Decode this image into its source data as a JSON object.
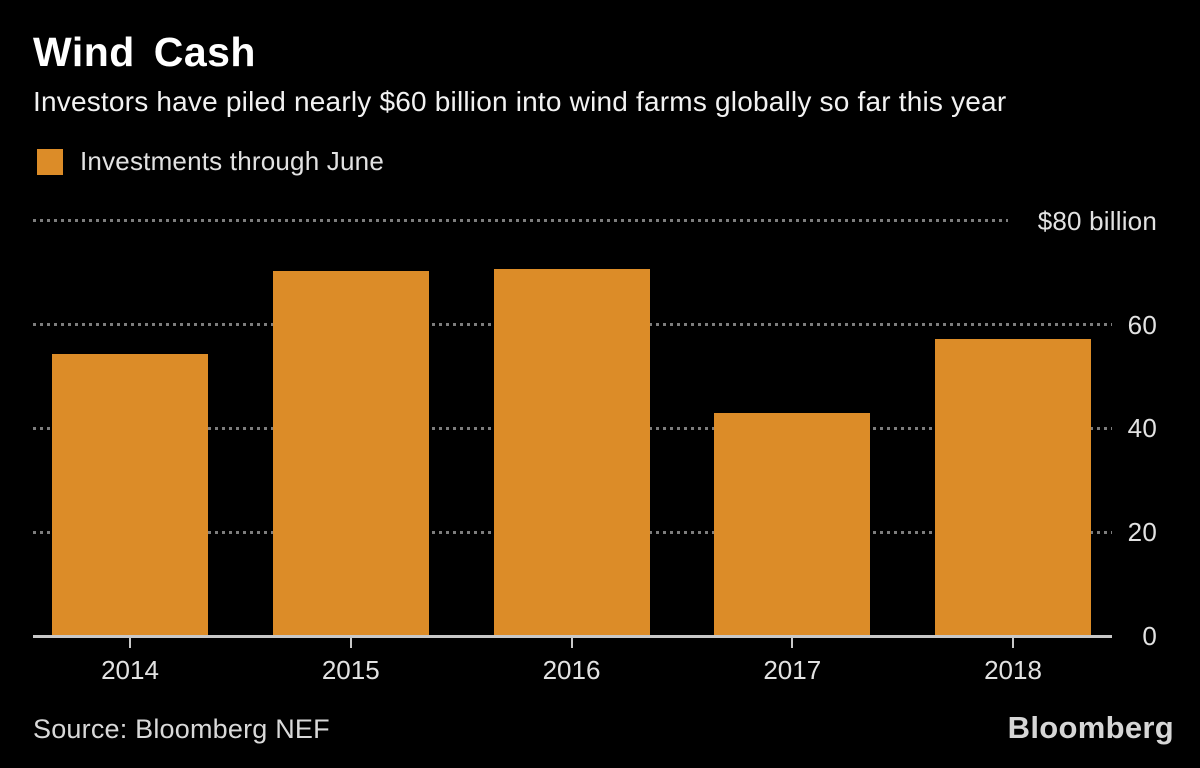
{
  "header": {
    "title": "Wind Cash",
    "subtitle": "Investors have piled nearly $60 billion into wind farms globally so far this year"
  },
  "legend": {
    "label": "Investments through June",
    "swatch_color": "#DC8C28"
  },
  "chart_data": {
    "type": "bar",
    "title": "Wind Cash",
    "series_name": "Investments through June",
    "categories": [
      "2014",
      "2015",
      "2016",
      "2017",
      "2018"
    ],
    "values": [
      54.4,
      70.3,
      70.7,
      43.0,
      57.2
    ],
    "unit": "$ billion",
    "ylim": [
      0,
      80
    ],
    "yticks": [
      0,
      20,
      40,
      60,
      80
    ],
    "ytick_labels": [
      "0",
      "20",
      "40",
      "60",
      "$80 billion"
    ],
    "ylabel_position": "right",
    "grid": "dotted-horizontal",
    "legend_position": "top-left",
    "bar_color": "#DC8C28"
  },
  "footer": {
    "source": "Source: Bloomberg NEF",
    "brand": "Bloomberg"
  },
  "colors": {
    "background": "#000000",
    "bar": "#DC8C28",
    "grid": "#7d7d7d",
    "axis": "#c8c8c8",
    "text": "#e2e2e2"
  }
}
